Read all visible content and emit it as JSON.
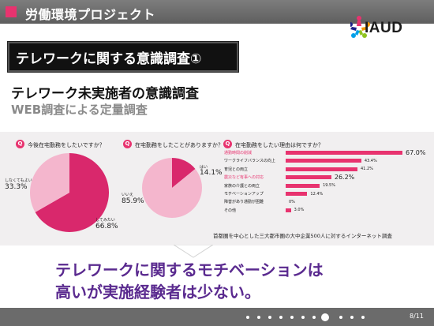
{
  "header": {
    "title": "労働環境プロジェクト"
  },
  "logo": {
    "text": "IAUD"
  },
  "topic": {
    "title": "テレワークに関する意識調査①"
  },
  "headings": {
    "main": "テレワーク未実施者の意識調査",
    "sub": "WEB調査による定量調査"
  },
  "panel": {
    "q_badge": "Q",
    "q1": {
      "question": "今後在宅勤務をしたいですか？",
      "slices": [
        {
          "label": "してみたい",
          "value": 66.8,
          "pct": "66.8%",
          "color": "#d9286c"
        },
        {
          "label": "しなくてもよい",
          "value": 33.3,
          "pct": "33.3%",
          "color": "#f4b6cd"
        }
      ]
    },
    "q2": {
      "question": "在宅勤務をしたことがありますか？",
      "slices": [
        {
          "label": "はい",
          "value": 14.1,
          "pct": "14.1%",
          "color": "#d9286c"
        },
        {
          "label": "いいえ",
          "value": 85.9,
          "pct": "85.9%",
          "color": "#f4b6cd"
        }
      ]
    },
    "q3": {
      "question": "在宅勤務をしたい理由は何ですか？",
      "bars": [
        {
          "label": "通勤時間の削減",
          "value": 67.0,
          "pct": "67.0%",
          "highlight": true
        },
        {
          "label": "ワークライフバランスの向上",
          "value": 43.4,
          "pct": "43.4%",
          "highlight": false
        },
        {
          "label": "育児との両立",
          "value": 41.2,
          "pct": "41.2%",
          "highlight": false
        },
        {
          "label": "震災など有事への対応",
          "value": 26.2,
          "pct": "26.2%",
          "highlight": true
        },
        {
          "label": "家族の介護との両立",
          "value": 19.5,
          "pct": "19.5%",
          "highlight": false
        },
        {
          "label": "モチベーションアップ",
          "value": 12.4,
          "pct": "12.4%",
          "highlight": false
        },
        {
          "label": "障害があり通勤が困難",
          "value": 0,
          "pct": "0%",
          "highlight": false
        },
        {
          "label": "その他",
          "value": 3.0,
          "pct": "3.0%",
          "highlight": false
        }
      ]
    },
    "source": "首都圏を中心とした三大都市圏の大中企業500人に対するインターネット調査"
  },
  "conclusion": {
    "line1": "テレワークに関するモチベーションは",
    "line2": "高いが実施経験者は少ない。"
  },
  "footer": {
    "page": "8/11",
    "dot_count": 11,
    "active_dot": 8
  },
  "colors": {
    "accent": "#e8336f",
    "pie_main": "#d9286c",
    "pie_light": "#f4b6cd",
    "conclusion": "#5a2a8f",
    "header": "#6b6b6b"
  }
}
